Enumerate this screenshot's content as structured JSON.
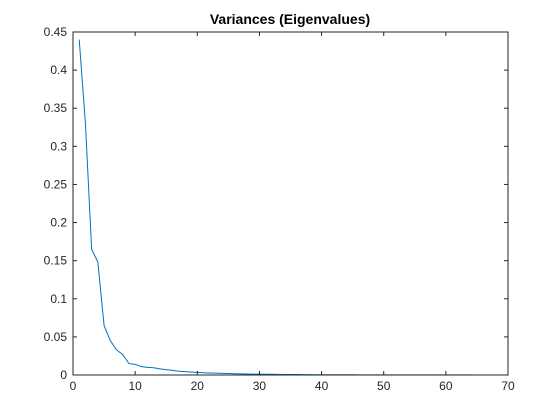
{
  "chart_data": {
    "type": "line",
    "title": "Variances (Eigenvalues)",
    "xlabel": "",
    "ylabel": "",
    "xlim": [
      0,
      70
    ],
    "ylim": [
      0,
      0.45
    ],
    "xticks": [
      0,
      10,
      20,
      30,
      40,
      50,
      60,
      70
    ],
    "xtick_labels": [
      "0",
      "10",
      "20",
      "30",
      "40",
      "50",
      "60",
      "70"
    ],
    "yticks": [
      0,
      0.05,
      0.1,
      0.15,
      0.2,
      0.25,
      0.3,
      0.35,
      0.4,
      0.45
    ],
    "ytick_labels": [
      "0",
      "0.05",
      "0.1",
      "0.15",
      "0.2",
      "0.25",
      "0.3",
      "0.35",
      "0.4",
      "0.45"
    ],
    "grid": false,
    "legend": "none",
    "series": [
      {
        "color": "#0072BD",
        "x": [
          1,
          2,
          3,
          4,
          5,
          6,
          7,
          8,
          9,
          10,
          11,
          12,
          13,
          14,
          15,
          16,
          17,
          18,
          19,
          20,
          21,
          22,
          23,
          24,
          25,
          26,
          27,
          28,
          29,
          30,
          31,
          32,
          33,
          34,
          35,
          36,
          37,
          38,
          39,
          40,
          41,
          42,
          43,
          44,
          45,
          46,
          47,
          48,
          49,
          50,
          51,
          52,
          53,
          54,
          55,
          56,
          57,
          58,
          59,
          60,
          61,
          62,
          63,
          64
        ],
        "values": [
          0.44,
          0.33,
          0.165,
          0.148,
          0.065,
          0.045,
          0.033,
          0.027,
          0.015,
          0.014,
          0.011,
          0.01,
          0.0095,
          0.008,
          0.007,
          0.006,
          0.005,
          0.0045,
          0.004,
          0.0035,
          0.003,
          0.0027,
          0.0024,
          0.0021,
          0.0019,
          0.0017,
          0.0015,
          0.0013,
          0.0012,
          0.0011,
          0.001,
          0.0009,
          0.0008,
          0.0007,
          0.0006,
          0.0006,
          0.0005,
          0.0005,
          0.0004,
          0.0004,
          0.0004,
          0.0003,
          0.0003,
          0.0003,
          0.0003,
          0.0002,
          0.0002,
          0.0002,
          0.0002,
          0.0002,
          0.0002,
          0.0001,
          0.0001,
          0.0001,
          0.0001,
          0.0001,
          0.0001,
          0.0001,
          0.0001,
          0.0001,
          0.0001,
          0.0001,
          0.0001,
          0.0001
        ]
      }
    ]
  }
}
